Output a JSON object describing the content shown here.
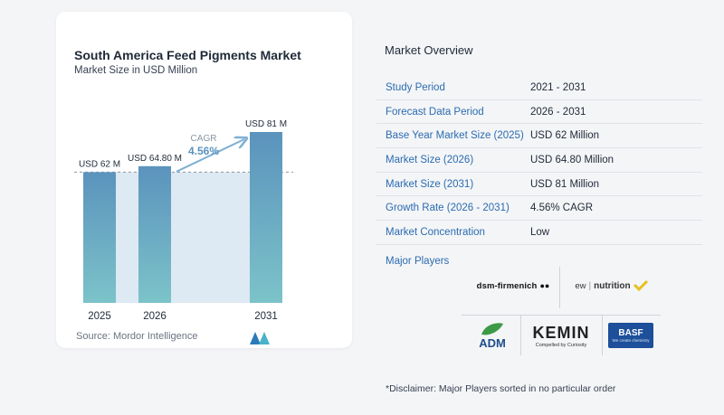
{
  "chart_data": {
    "type": "bar",
    "title": "South America Feed Pigments Market",
    "subtitle": "Market Size in USD Million",
    "categories": [
      "2025",
      "2026",
      "2031"
    ],
    "values": [
      62,
      64.8,
      81
    ],
    "value_labels": [
      "USD 62 M",
      "USD 64.80 M",
      "USD 81 M"
    ],
    "ylim": [
      0,
      81
    ],
    "cagr_label": "CAGR",
    "cagr_value": "4.56%",
    "colors": {
      "bar_top": "#5b93bd",
      "bar_bottom": "#7cc3c9",
      "band": "#dde9f3",
      "arrow": "#7fb0d4"
    }
  },
  "source_text": "Source:  Mordor Intelligence",
  "overview": {
    "title": "Market Overview",
    "rows": [
      {
        "label": "Study Period",
        "value": "2021 - 2031"
      },
      {
        "label": "Forecast Data Period",
        "value": "2026 - 2031"
      },
      {
        "label": "Base Year Market Size (2025)",
        "value": "USD 62 Million"
      },
      {
        "label": "Market Size (2026)",
        "value": "USD 64.80 Million"
      },
      {
        "label": "Market Size (2031)",
        "value": "USD 81 Million"
      },
      {
        "label": "Growth Rate (2026 - 2031)",
        "value": "4.56% CAGR"
      },
      {
        "label": "Market Concentration",
        "value": "Low"
      }
    ]
  },
  "players": {
    "title": "Major Players",
    "logos": {
      "dsm": "dsm-firmenich",
      "ew": "ew",
      "nutrition": "nutrition",
      "adm": "ADM",
      "kemin": "KEMIN",
      "kemin_tag": "Compelled by Curiosity",
      "basf": "BASF",
      "basf_tag": "We create chemistry"
    }
  },
  "disclaimer": "*Disclaimer: Major Players sorted in no particular order"
}
